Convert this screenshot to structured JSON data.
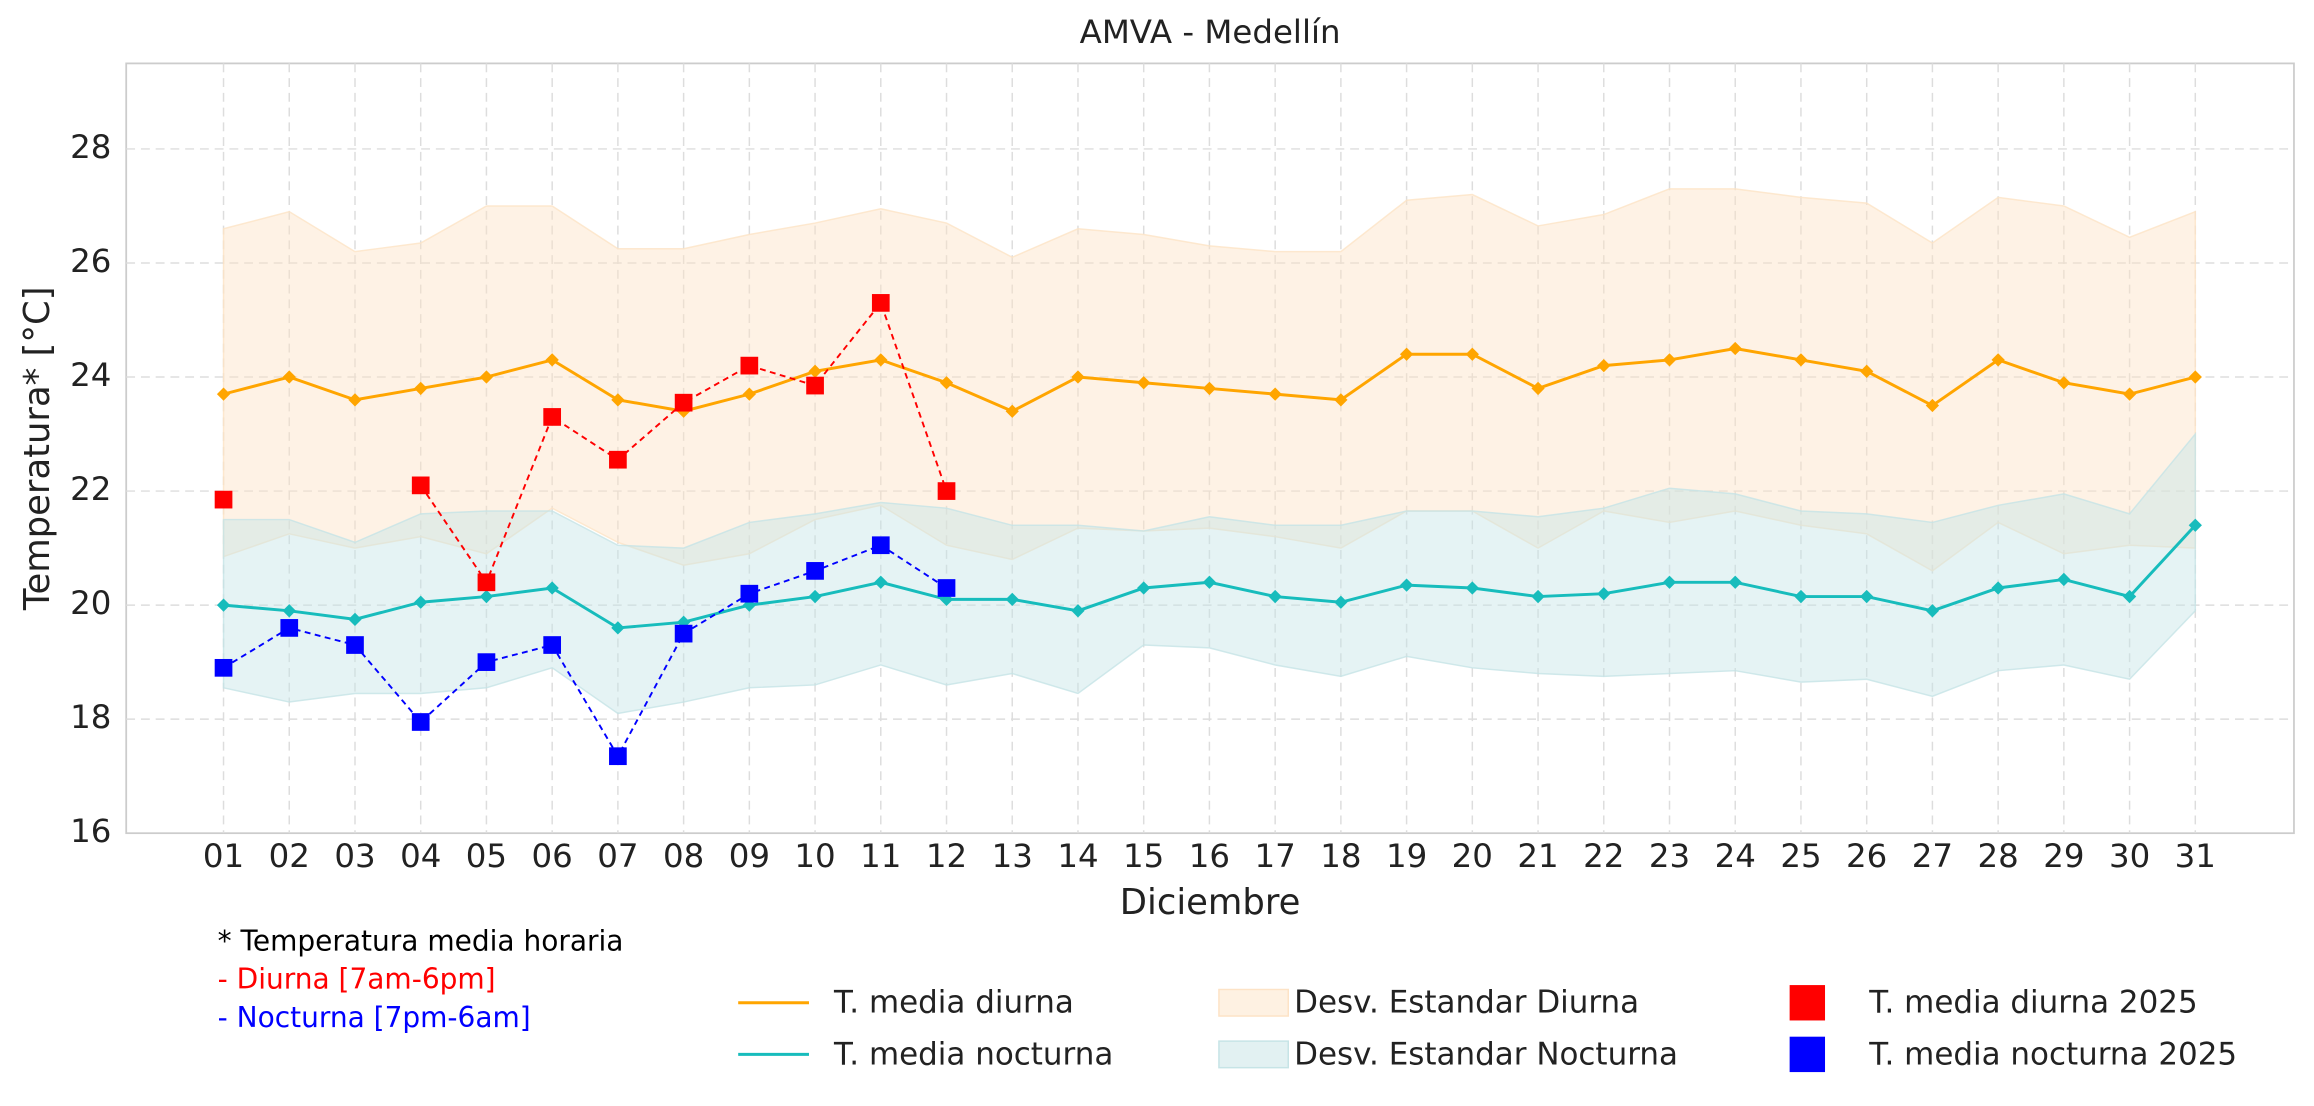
{
  "chart_data": {
    "type": "line",
    "title": "AMVA - Medellín",
    "xlabel": "Diciembre",
    "ylabel": "Temperatura* [°C]",
    "categories": [
      "01",
      "02",
      "03",
      "04",
      "05",
      "06",
      "07",
      "08",
      "09",
      "10",
      "11",
      "12",
      "13",
      "14",
      "15",
      "16",
      "17",
      "18",
      "19",
      "20",
      "21",
      "22",
      "23",
      "24",
      "25",
      "26",
      "27",
      "28",
      "29",
      "30",
      "31"
    ],
    "ylim": [
      16,
      29.5
    ],
    "yticks": [
      16,
      18,
      20,
      22,
      24,
      26,
      28
    ],
    "grid": true,
    "series": [
      {
        "name": "T. media diurna",
        "kind": "line",
        "marker": "diamond",
        "color": "#ffa500",
        "values": [
          23.7,
          24.0,
          23.6,
          23.8,
          24.0,
          24.3,
          23.6,
          23.4,
          23.7,
          24.1,
          24.3,
          23.9,
          23.4,
          24.0,
          23.9,
          23.8,
          23.7,
          23.6,
          24.4,
          24.4,
          23.8,
          24.2,
          24.3,
          24.5,
          24.3,
          24.1,
          23.5,
          24.3,
          23.9,
          23.7,
          24.0
        ]
      },
      {
        "name": "T. media nocturna",
        "kind": "line",
        "marker": "diamond",
        "color": "#17bcbc",
        "values": [
          20.0,
          19.9,
          19.75,
          20.05,
          20.15,
          20.3,
          19.6,
          19.7,
          20.0,
          20.15,
          20.4,
          20.1,
          20.1,
          19.9,
          20.3,
          20.4,
          20.15,
          20.05,
          20.35,
          20.3,
          20.15,
          20.2,
          20.4,
          20.4,
          20.15,
          20.15,
          19.9,
          20.3,
          20.45,
          20.15,
          21.4
        ]
      },
      {
        "name": "Desv. Estandar Diurna",
        "kind": "band",
        "color": "#fde3c6",
        "upper": [
          26.6,
          26.9,
          26.2,
          26.35,
          27.0,
          27.0,
          26.25,
          26.25,
          26.5,
          26.7,
          26.95,
          26.7,
          26.1,
          26.6,
          26.5,
          26.3,
          26.2,
          26.2,
          27.1,
          27.2,
          26.65,
          26.85,
          27.3,
          27.3,
          27.15,
          27.05,
          26.35,
          27.15,
          27.0,
          26.45,
          26.9
        ],
        "lower": [
          20.85,
          21.25,
          21.0,
          21.2,
          20.9,
          21.7,
          21.1,
          20.7,
          20.9,
          21.5,
          21.75,
          21.05,
          20.8,
          21.35,
          21.3,
          21.35,
          21.2,
          21.0,
          21.65,
          21.65,
          21.0,
          21.65,
          21.45,
          21.65,
          21.4,
          21.25,
          20.6,
          21.45,
          20.9,
          21.05,
          21.0
        ]
      },
      {
        "name": "Desv. Estandar Nocturna",
        "kind": "band",
        "color": "#c6e4e6",
        "upper": [
          21.5,
          21.5,
          21.1,
          21.6,
          21.65,
          21.65,
          21.05,
          21.0,
          21.45,
          21.6,
          21.8,
          21.7,
          21.4,
          21.4,
          21.3,
          21.55,
          21.4,
          21.4,
          21.65,
          21.65,
          21.55,
          21.7,
          22.05,
          21.95,
          21.65,
          21.6,
          21.45,
          21.75,
          21.95,
          21.6,
          23.0
        ],
        "lower": [
          18.55,
          18.3,
          18.45,
          18.45,
          18.55,
          18.9,
          18.1,
          18.3,
          18.55,
          18.6,
          18.95,
          18.6,
          18.8,
          18.45,
          19.3,
          19.25,
          18.95,
          18.75,
          19.1,
          18.9,
          18.8,
          18.75,
          18.8,
          18.85,
          18.65,
          18.7,
          18.4,
          18.85,
          18.95,
          18.7,
          19.9
        ]
      },
      {
        "name": "T. media diurna 2025",
        "kind": "line",
        "marker": "square",
        "dashed": true,
        "color": "#ff0000",
        "values": [
          21.85,
          null,
          null,
          22.1,
          20.4,
          23.3,
          22.55,
          23.55,
          24.2,
          23.85,
          25.3,
          22.0,
          null,
          null,
          null,
          null,
          null,
          null,
          null,
          null,
          null,
          null,
          null,
          null,
          null,
          null,
          null,
          null,
          null,
          null,
          null
        ]
      },
      {
        "name": "T. media nocturna 2025",
        "kind": "line",
        "marker": "square",
        "dashed": true,
        "color": "#0000ff",
        "values": [
          18.9,
          19.6,
          19.3,
          17.95,
          19.0,
          19.3,
          17.35,
          19.5,
          20.2,
          20.6,
          21.05,
          20.3,
          null,
          null,
          null,
          null,
          null,
          null,
          null,
          null,
          null,
          null,
          null,
          null,
          null,
          null,
          null,
          null,
          null,
          null,
          null
        ]
      }
    ],
    "notes": [
      {
        "text": "* Temperatura media horaria",
        "color": "#000000"
      },
      {
        "text": "- Diurna [7am-6pm]",
        "color": "#ff0000"
      },
      {
        "text": "- Nocturna [7pm-6am]",
        "color": "#0000ff"
      }
    ]
  }
}
